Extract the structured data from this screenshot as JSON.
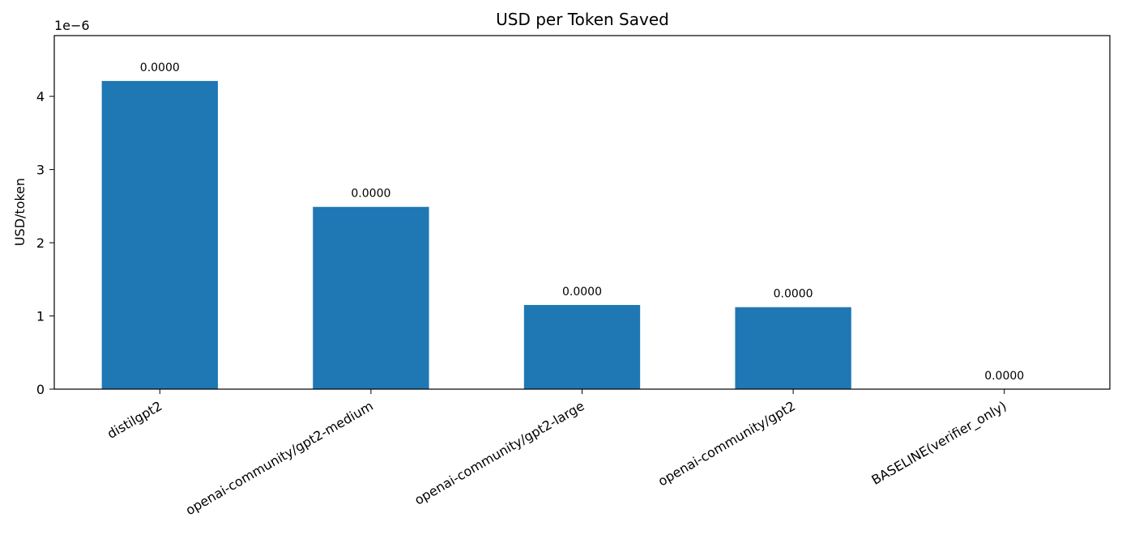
{
  "chart_data": {
    "type": "bar",
    "title": "USD per Token Saved",
    "xlabel": "",
    "ylabel": "USD/token",
    "y_scale_label": "1e−6",
    "ylim": [
      0,
      4.83
    ],
    "yticks": [
      0,
      1,
      2,
      3,
      4
    ],
    "ytick_labels": [
      "0",
      "1",
      "2",
      "3",
      "4"
    ],
    "grid": false,
    "bar_color": "#1f77b4",
    "categories": [
      "distilgpt2",
      "openai-community/gpt2-medium",
      "openai-community/gpt2-large",
      "openai-community/gpt2",
      "BASELINE(verifier_only)"
    ],
    "values": [
      4.21,
      2.49,
      1.15,
      1.12,
      0
    ],
    "data_labels": [
      "0.0000",
      "0.0000",
      "0.0000",
      "0.0000",
      "0.0000"
    ]
  }
}
